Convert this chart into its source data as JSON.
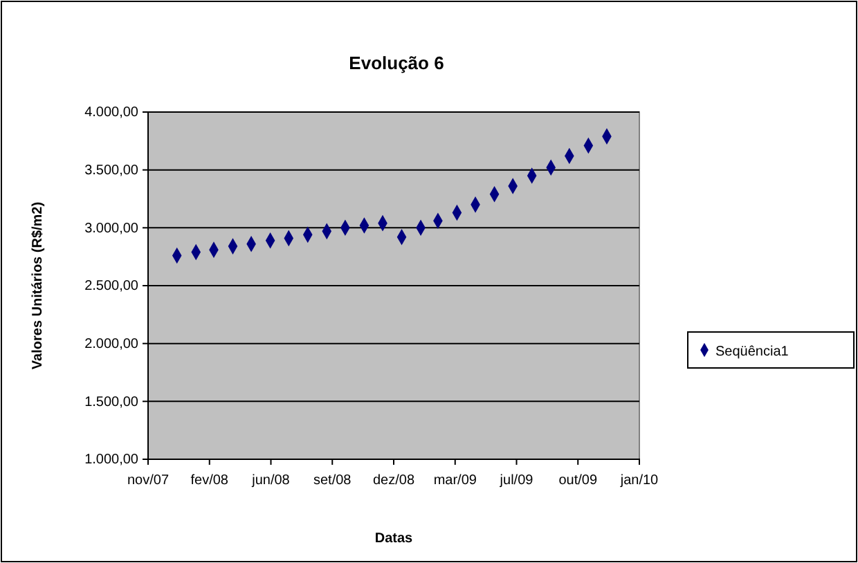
{
  "chart_data": {
    "type": "scatter",
    "title": "Evolução  6",
    "xlabel": "Datas",
    "ylabel": "Valores Unitários (R$/m2)",
    "x": [
      "2008-01-01",
      "2008-02-01",
      "2008-03-01",
      "2008-04-01",
      "2008-05-01",
      "2008-06-01",
      "2008-07-01",
      "2008-08-01",
      "2008-09-01",
      "2008-10-01",
      "2008-11-01",
      "2008-12-01",
      "2009-01-01",
      "2009-02-01",
      "2009-03-01",
      "2009-04-01",
      "2009-05-01",
      "2009-06-01",
      "2009-07-01",
      "2009-08-01",
      "2009-09-01",
      "2009-10-01",
      "2009-11-01",
      "2009-12-01"
    ],
    "series": [
      {
        "name": "Seqüência1",
        "color": "#000080",
        "values": [
          2760,
          2790,
          2810,
          2840,
          2860,
          2890,
          2910,
          2940,
          2970,
          3000,
          3020,
          3040,
          2920,
          3000,
          3060,
          3130,
          3200,
          3290,
          3360,
          3450,
          3520,
          3620,
          3710,
          3790
        ]
      }
    ],
    "xlim": [
      "2007-11-15",
      "2010-01-23"
    ],
    "xticks": [
      {
        "value": "2007-11-15",
        "label": "nov/07"
      },
      {
        "value": "2008-02-23",
        "label": "fev/08"
      },
      {
        "value": "2008-06-02",
        "label": "jun/08"
      },
      {
        "value": "2008-09-10",
        "label": "set/08"
      },
      {
        "value": "2008-12-19",
        "label": "dez/08"
      },
      {
        "value": "2009-03-29",
        "label": "mar/09"
      },
      {
        "value": "2009-07-07",
        "label": "jul/09"
      },
      {
        "value": "2009-10-15",
        "label": "out/09"
      },
      {
        "value": "2010-01-23",
        "label": "jan/10"
      }
    ],
    "ylim": [
      1000,
      4000
    ],
    "yticks": [
      {
        "value": 1000,
        "label": "1.000,00"
      },
      {
        "value": 1500,
        "label": "1.500,00"
      },
      {
        "value": 2000,
        "label": "2.000,00"
      },
      {
        "value": 2500,
        "label": "2.500,00"
      },
      {
        "value": 3000,
        "label": "3.000,00"
      },
      {
        "value": 3500,
        "label": "3.500,00"
      },
      {
        "value": 4000,
        "label": "4.000,00"
      }
    ],
    "grid": "y",
    "legend": "right",
    "marker": "diamond"
  }
}
